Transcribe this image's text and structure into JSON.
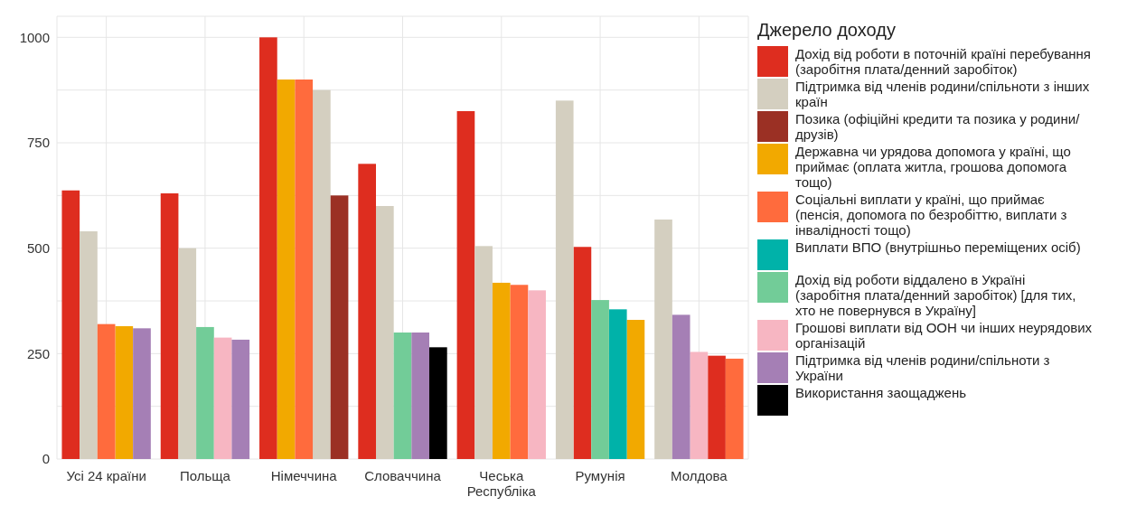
{
  "chart_data": {
    "type": "bar",
    "legend_title": "Джерело доходу",
    "categories": [
      "Усі 24 країни",
      "Польща",
      "Німеччина",
      "Словаччина",
      "Чеська\nРеспубліка",
      "Румунія",
      "Молдова"
    ],
    "series": [
      {
        "name": "Дохід від роботи в поточній країні перебування (заробітня плата/денний заробіток)",
        "color": "#de2d1f",
        "values": [
          637,
          630,
          1000,
          700,
          825,
          503,
          245
        ]
      },
      {
        "name": "Підтримка від членів родини/спільноти з інших країн",
        "color": "#d4cfc0",
        "values": [
          540,
          500,
          875,
          600,
          505,
          850,
          568
        ]
      },
      {
        "name": "Позика (офіційні кредити та позика у родини/друзів)",
        "color": "#9b3024",
        "values": [
          null,
          null,
          625,
          null,
          null,
          null,
          null
        ]
      },
      {
        "name": "Державна чи урядова допомога у країні, що приймає (оплата житла, грошова допомога тощо)",
        "color": "#f2a900",
        "values": [
          315,
          null,
          900,
          null,
          418,
          330,
          null
        ]
      },
      {
        "name": "Соціальні виплати у країні, що приймає (пенсія, допомога по безробіттю, виплати з інвалідності тощо)",
        "color": "#ff6b3d",
        "values": [
          320,
          null,
          900,
          null,
          413,
          null,
          238
        ]
      },
      {
        "name": "Виплати ВПО (внутрішньо переміщених осіб)",
        "color": "#00b2a9",
        "values": [
          null,
          null,
          null,
          null,
          null,
          355,
          null
        ]
      },
      {
        "name": "Дохід від роботи віддалено в Україні (заробітня плата/денний заробіток) [для тих, хто не повернувся в Україну]",
        "color": "#72cc98",
        "values": [
          null,
          313,
          null,
          300,
          null,
          377,
          null
        ]
      },
      {
        "name": "Грошові виплати від ООН чи інших неурядових організацій",
        "color": "#f7b6c2",
        "values": [
          null,
          288,
          null,
          null,
          400,
          null,
          254
        ]
      },
      {
        "name": "Підтримка від членів родини/спільноти з України",
        "color": "#a57fb5",
        "values": [
          310,
          283,
          null,
          300,
          null,
          null,
          342
        ]
      },
      {
        "name": "Використання заощаджень",
        "color": "#000000",
        "values": [
          null,
          null,
          null,
          265,
          null,
          null,
          null
        ]
      }
    ],
    "ylim": [
      0,
      1050
    ],
    "yticks": [
      0,
      {
        "value": 125,
        "label": null
      },
      250,
      {
        "value": 375,
        "label": null
      },
      500,
      {
        "value": 625,
        "label": null
      },
      750,
      {
        "value": 875,
        "label": null
      },
      1000
    ],
    "grid": true,
    "legend": "right"
  }
}
